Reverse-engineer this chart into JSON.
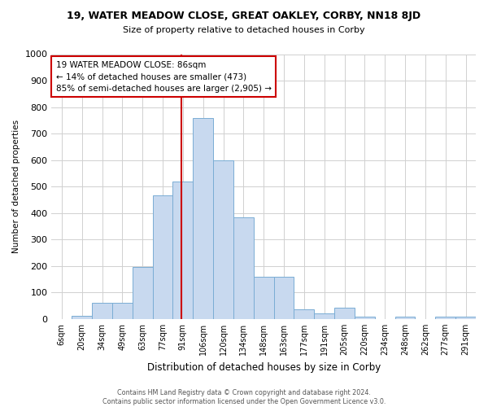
{
  "title": "19, WATER MEADOW CLOSE, GREAT OAKLEY, CORBY, NN18 8JD",
  "subtitle": "Size of property relative to detached houses in Corby",
  "xlabel": "Distribution of detached houses by size in Corby",
  "ylabel": "Number of detached properties",
  "footer": "Contains HM Land Registry data © Crown copyright and database right 2024.\nContains public sector information licensed under the Open Government Licence v3.0.",
  "categories": [
    "6sqm",
    "20sqm",
    "34sqm",
    "49sqm",
    "63sqm",
    "77sqm",
    "91sqm",
    "106sqm",
    "120sqm",
    "134sqm",
    "148sqm",
    "163sqm",
    "177sqm",
    "191sqm",
    "205sqm",
    "220sqm",
    "234sqm",
    "248sqm",
    "262sqm",
    "277sqm",
    "291sqm"
  ],
  "values": [
    0,
    13,
    62,
    62,
    195,
    467,
    520,
    760,
    600,
    383,
    160,
    160,
    35,
    20,
    42,
    10,
    0,
    10,
    0,
    10,
    10
  ],
  "bar_color": "#c8d9ef",
  "bar_edge_color": "#7aadd4",
  "vline_x": 5.93,
  "vline_color": "#cc0000",
  "annotation_text": "19 WATER MEADOW CLOSE: 86sqm\n← 14% of detached houses are smaller (473)\n85% of semi-detached houses are larger (2,905) →",
  "annotation_box_color": "#ffffff",
  "annotation_box_edge": "#cc0000",
  "ylim": [
    0,
    1000
  ],
  "yticks": [
    0,
    100,
    200,
    300,
    400,
    500,
    600,
    700,
    800,
    900,
    1000
  ],
  "background_color": "#ffffff",
  "grid_color": "#d0d0d0"
}
